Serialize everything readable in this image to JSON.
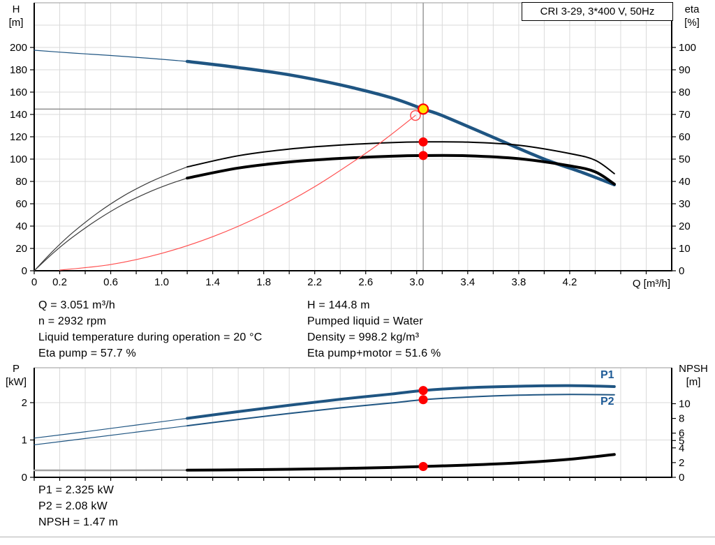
{
  "title_box": "CRI 3-29, 3*400 V, 50Hz",
  "colors": {
    "blue": "#1f5582",
    "black": "#000000",
    "dark_gray": "#3c3c3c",
    "gray_curve": "#a0a0a0",
    "red": "#ff0000",
    "system_red": "#ff4d4d",
    "yellow": "#ffe800",
    "grid": "#dadada",
    "crosshair": "#8a8a8a",
    "label_blue": "#1d5a96"
  },
  "duty_point": {
    "Q_m3h": 3.051,
    "H_m": 144.8,
    "n_rpm": 2932,
    "liquid_temp_C": 20,
    "eta_pump_pct": 57.7,
    "eta_pump_motor_pct": 51.6,
    "pumped_liquid": "Water",
    "density_kg_m3": 998.2,
    "P1_kW": 2.325,
    "P2_kW": 2.08,
    "NPSH_m": 1.47
  },
  "info_left": [
    "Q = 3.051 m³/h",
    "n = 2932 rpm",
    "Liquid temperature during operation = 20 °C",
    "Eta pump = 57.7 %"
  ],
  "info_right": [
    "H = 144.8 m",
    "Pumped liquid = Water",
    "Density = 998.2 kg/m³",
    "Eta pump+motor = 51.6 %"
  ],
  "info_bottom": [
    "P1 = 2.325 kW",
    "P2 = 2.08 kW",
    "NPSH = 1.47 m"
  ],
  "curve_labels": {
    "p1": "P1",
    "p2": "P2"
  },
  "chart_data": [
    {
      "type": "line",
      "title": "CRI 3-29, 3*400 V, 50Hz",
      "xlabel": "Q [m³/h]",
      "x_range": [
        0,
        5.0
      ],
      "grid": true,
      "left_axis": {
        "label": "H",
        "unit": "[m]",
        "range": [
          0,
          240
        ],
        "tick_labels": [
          0,
          20,
          40,
          60,
          80,
          100,
          120,
          140,
          160,
          180,
          200
        ]
      },
      "right_axis": {
        "label": "eta",
        "unit": "[%]",
        "range": [
          0,
          120
        ],
        "tick_labels": [
          0,
          10,
          20,
          30,
          40,
          50,
          60,
          70,
          80,
          90,
          100
        ]
      },
      "x_tick_labels": [
        [
          0,
          "0"
        ],
        [
          0.2,
          "0.2"
        ],
        [
          0.6,
          "0.6"
        ],
        [
          1.0,
          "1.0"
        ],
        [
          1.4,
          "1.4"
        ],
        [
          1.8,
          "1.8"
        ],
        [
          2.2,
          "2.2"
        ],
        [
          2.6,
          "2.6"
        ],
        [
          3.0,
          "3.0"
        ],
        [
          3.4,
          "3.4"
        ],
        [
          3.8,
          "3.8"
        ],
        [
          4.2,
          "4.2"
        ]
      ],
      "series": [
        {
          "name": "head-curve-low-flow",
          "axis": "left",
          "color": "blue",
          "width": 1.2,
          "points": [
            [
              0,
              197.5
            ],
            [
              0.3,
              195.0
            ],
            [
              0.6,
              192.8
            ],
            [
              0.9,
              190.3
            ],
            [
              1.2,
              187.5
            ]
          ]
        },
        {
          "name": "head-curve",
          "axis": "left",
          "color": "blue",
          "width": 4.5,
          "points": [
            [
              1.2,
              187.5
            ],
            [
              1.6,
              182
            ],
            [
              2.0,
              175.5
            ],
            [
              2.4,
              166.5
            ],
            [
              2.8,
              155
            ],
            [
              3.051,
              144.8
            ],
            [
              3.2,
              139
            ],
            [
              3.6,
              119.5
            ],
            [
              4.0,
              100
            ],
            [
              4.3,
              88
            ],
            [
              4.55,
              77
            ]
          ]
        },
        {
          "name": "eta-pump-low-flow",
          "axis": "right",
          "color": "dark_gray",
          "width": 1.2,
          "points": [
            [
              0,
              0
            ],
            [
              0.15,
              9
            ],
            [
              0.3,
              17
            ],
            [
              0.5,
              26
            ],
            [
              0.7,
              33.5
            ],
            [
              0.9,
              39.5
            ],
            [
              1.05,
              43.2
            ],
            [
              1.2,
              46.5
            ]
          ]
        },
        {
          "name": "eta-pump-curve",
          "axis": "right",
          "color": "black",
          "width": 2,
          "points": [
            [
              1.2,
              46.5
            ],
            [
              1.6,
              51.5
            ],
            [
              2.0,
              54.5
            ],
            [
              2.4,
              56.3
            ],
            [
              2.8,
              57.4
            ],
            [
              3.051,
              57.7
            ],
            [
              3.4,
              57.6
            ],
            [
              3.8,
              56.2
            ],
            [
              4.2,
              52.5
            ],
            [
              4.4,
              49.5
            ],
            [
              4.55,
              43.5
            ]
          ]
        },
        {
          "name": "eta-pump-motor-low-flow",
          "axis": "right",
          "color": "dark_gray",
          "width": 1.2,
          "points": [
            [
              0,
              0
            ],
            [
              0.15,
              8
            ],
            [
              0.3,
              15
            ],
            [
              0.5,
              23
            ],
            [
              0.7,
              29.8
            ],
            [
              0.9,
              35.2
            ],
            [
              1.05,
              38.6
            ],
            [
              1.2,
              41.5
            ]
          ]
        },
        {
          "name": "eta-pump-motor-curve",
          "axis": "right",
          "color": "black",
          "width": 4,
          "points": [
            [
              1.2,
              41.5
            ],
            [
              1.6,
              46
            ],
            [
              2.0,
              48.7
            ],
            [
              2.4,
              50.3
            ],
            [
              2.8,
              51.3
            ],
            [
              3.051,
              51.6
            ],
            [
              3.4,
              51.5
            ],
            [
              3.8,
              50.2
            ],
            [
              4.2,
              47
            ],
            [
              4.4,
              44.3
            ],
            [
              4.55,
              38.8
            ]
          ]
        },
        {
          "name": "system-curve",
          "axis": "left",
          "color": "system_red",
          "width": 1.2,
          "points": [
            [
              0.2,
              0.6
            ],
            [
              0.6,
              5.6
            ],
            [
              1.0,
              15.6
            ],
            [
              1.4,
              30.5
            ],
            [
              1.8,
              50.4
            ],
            [
              2.2,
              75.3
            ],
            [
              2.6,
              105.2
            ],
            [
              2.8,
              122
            ],
            [
              2.99,
              139.1
            ]
          ]
        }
      ],
      "markers": [
        {
          "name": "requested-duty-point",
          "q": 2.99,
          "value": 139.1,
          "axis": "left",
          "style": "open-red"
        },
        {
          "name": "duty-point",
          "q": 3.051,
          "value": 144.8,
          "axis": "left",
          "style": "duty-yellow"
        },
        {
          "name": "eta-pump-point",
          "q": 3.051,
          "value": 57.7,
          "axis": "right",
          "style": "dot-red"
        },
        {
          "name": "eta-pump-motor-point",
          "q": 3.051,
          "value": 51.6,
          "axis": "right",
          "style": "dot-red"
        }
      ],
      "crosshair": {
        "q": 3.051,
        "h": 144.8
      }
    },
    {
      "type": "line",
      "xlabel": "",
      "x_range": [
        0,
        5.0
      ],
      "grid": true,
      "left_axis": {
        "label": "P",
        "unit": "[kW]",
        "range": [
          0,
          2.96
        ],
        "tick_labels": [
          0,
          1,
          2
        ]
      },
      "right_axis": {
        "label": "NPSH",
        "unit": "[m]",
        "range": [
          0,
          15.1
        ],
        "tick_labels": [
          0,
          2,
          4,
          5,
          6,
          8,
          10
        ]
      },
      "x_tick_labels": [],
      "series": [
        {
          "name": "p1-low-flow",
          "axis": "left",
          "color": "blue",
          "width": 1.2,
          "points": [
            [
              0,
              1.05
            ],
            [
              0.4,
              1.22
            ],
            [
              0.8,
              1.4
            ],
            [
              1.2,
              1.58
            ]
          ]
        },
        {
          "name": "p1-curve",
          "axis": "left",
          "color": "blue",
          "width": 4,
          "points": [
            [
              1.2,
              1.58
            ],
            [
              1.6,
              1.76
            ],
            [
              2.0,
              1.93
            ],
            [
              2.4,
              2.09
            ],
            [
              2.8,
              2.23
            ],
            [
              3.051,
              2.325
            ],
            [
              3.4,
              2.4
            ],
            [
              3.8,
              2.44
            ],
            [
              4.2,
              2.455
            ],
            [
              4.55,
              2.43
            ]
          ]
        },
        {
          "name": "p2-low-flow",
          "axis": "left",
          "color": "blue",
          "width": 1.2,
          "points": [
            [
              0,
              0.87
            ],
            [
              0.4,
              1.04
            ],
            [
              0.8,
              1.21
            ],
            [
              1.2,
              1.38
            ]
          ]
        },
        {
          "name": "p2-curve",
          "axis": "left",
          "color": "blue",
          "width": 2,
          "points": [
            [
              1.2,
              1.38
            ],
            [
              1.6,
              1.55
            ],
            [
              2.0,
              1.71
            ],
            [
              2.4,
              1.86
            ],
            [
              2.8,
              1.99
            ],
            [
              3.051,
              2.08
            ],
            [
              3.4,
              2.15
            ],
            [
              3.8,
              2.2
            ],
            [
              4.2,
              2.22
            ],
            [
              4.55,
              2.21
            ]
          ]
        },
        {
          "name": "npsh-low-flow",
          "axis": "right",
          "color": "gray_curve",
          "width": 2.5,
          "points": [
            [
              0,
              0.95
            ],
            [
              0.6,
              0.95
            ],
            [
              1.2,
              0.97
            ]
          ]
        },
        {
          "name": "npsh-curve",
          "axis": "right",
          "color": "black",
          "width": 4,
          "points": [
            [
              1.2,
              0.97
            ],
            [
              1.6,
              1.02
            ],
            [
              2.0,
              1.09
            ],
            [
              2.4,
              1.2
            ],
            [
              2.8,
              1.34
            ],
            [
              3.051,
              1.47
            ],
            [
              3.4,
              1.66
            ],
            [
              3.8,
              1.97
            ],
            [
              4.2,
              2.45
            ],
            [
              4.55,
              3.1
            ]
          ]
        }
      ],
      "markers": [
        {
          "name": "p1-point",
          "q": 3.051,
          "value": 2.325,
          "axis": "left",
          "style": "dot-red"
        },
        {
          "name": "p2-point",
          "q": 3.051,
          "value": 2.08,
          "axis": "left",
          "style": "dot-red"
        },
        {
          "name": "npsh-point",
          "q": 3.051,
          "value": 1.47,
          "axis": "right",
          "style": "dot-red"
        }
      ]
    }
  ]
}
